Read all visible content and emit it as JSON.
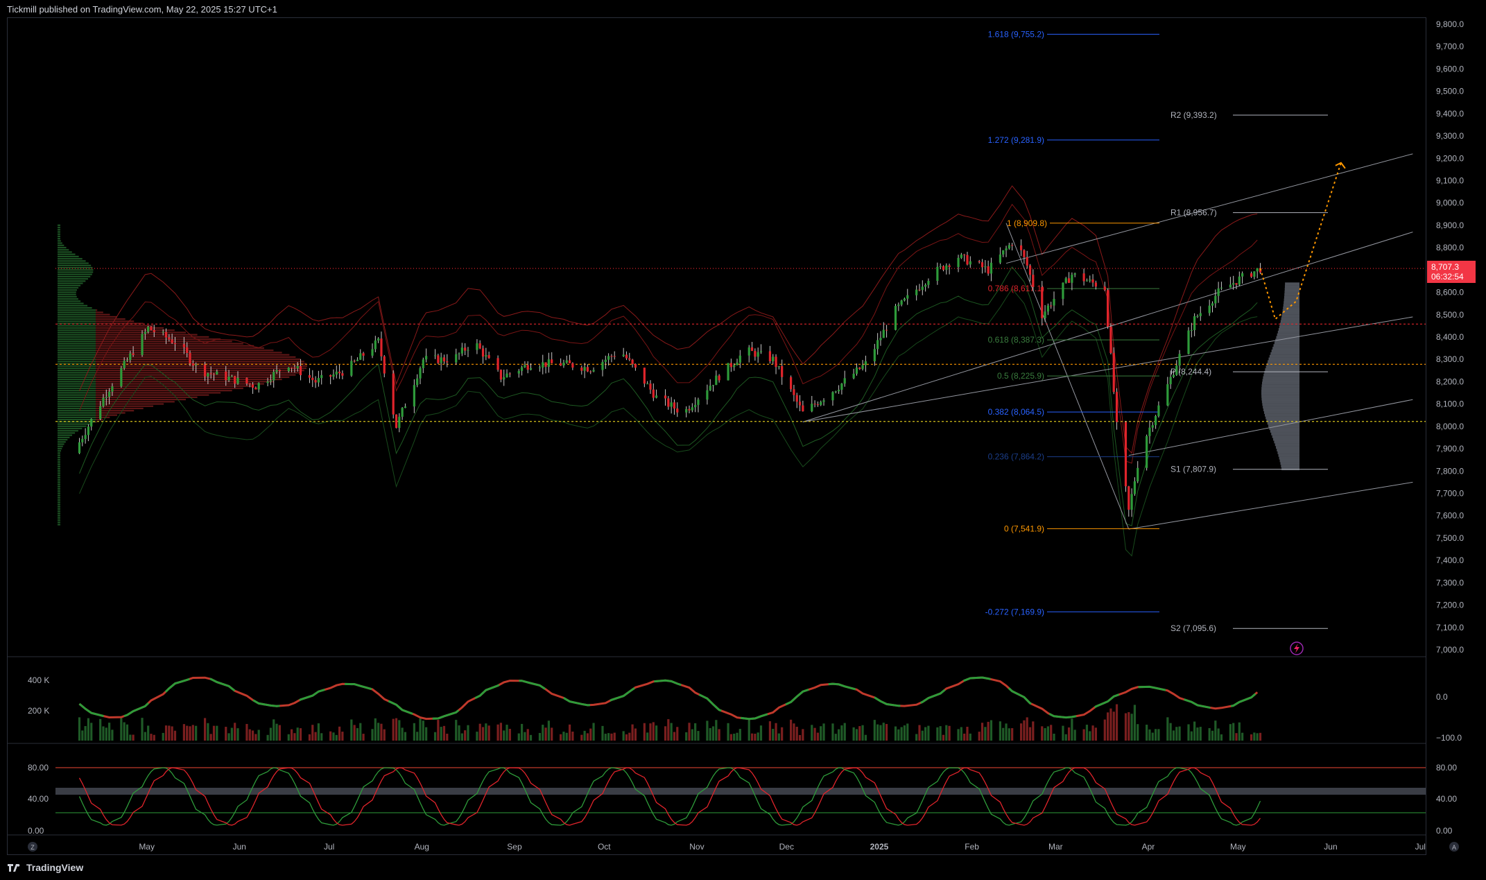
{
  "header": {
    "published_line": "Tickmill published on TradingView.com, May 22, 2025 15:27 UTC+1"
  },
  "footer": {
    "brand": "TradingView"
  },
  "chart_data": {
    "type": "candlestick",
    "price_axis": {
      "min": 7000,
      "max": 9800,
      "ticks": [
        "9,800.0",
        "9,700.0",
        "9,600.0",
        "9,500.0",
        "9,400.0",
        "9,300.0",
        "9,200.0",
        "9,100.0",
        "9,000.0",
        "8,900.0",
        "8,800.0",
        "8,700.0",
        "8,600.0",
        "8,500.0",
        "8,400.0",
        "8,300.0",
        "8,200.0",
        "8,100.0",
        "8,000.0",
        "7,900.0",
        "7,800.0",
        "7,700.0",
        "7,600.0",
        "7,500.0",
        "7,400.0",
        "7,300.0",
        "7,200.0",
        "7,100.0",
        "7,000.0"
      ]
    },
    "time_axis": {
      "labels": [
        "May",
        "Jun",
        "Jul",
        "Aug",
        "Sep",
        "Oct",
        "Nov",
        "Dec",
        "2025",
        "Feb",
        "Mar",
        "Apr",
        "May",
        "Jun",
        "Jul"
      ]
    },
    "last_price": {
      "value": "8,707.3",
      "countdown": "06:32:54"
    },
    "price_path": [
      {
        "t": "2024-04-20",
        "p": 7880
      },
      {
        "t": "2024-05-01",
        "p": 8150
      },
      {
        "t": "2024-05-15",
        "p": 8440
      },
      {
        "t": "2024-05-25",
        "p": 8370
      },
      {
        "t": "2024-06-01",
        "p": 8250
      },
      {
        "t": "2024-06-10",
        "p": 8220
      },
      {
        "t": "2024-06-20",
        "p": 8180
      },
      {
        "t": "2024-07-01",
        "p": 8280
      },
      {
        "t": "2024-07-10",
        "p": 8200
      },
      {
        "t": "2024-07-20",
        "p": 8250
      },
      {
        "t": "2024-07-31",
        "p": 8380
      },
      {
        "t": "2024-08-06",
        "p": 8000
      },
      {
        "t": "2024-08-15",
        "p": 8300
      },
      {
        "t": "2024-08-25",
        "p": 8300
      },
      {
        "t": "2024-09-01",
        "p": 8380
      },
      {
        "t": "2024-09-10",
        "p": 8220
      },
      {
        "t": "2024-09-20",
        "p": 8280
      },
      {
        "t": "2024-10-01",
        "p": 8280
      },
      {
        "t": "2024-10-10",
        "p": 8260
      },
      {
        "t": "2024-10-20",
        "p": 8340
      },
      {
        "t": "2024-11-01",
        "p": 8130
      },
      {
        "t": "2024-11-10",
        "p": 8060
      },
      {
        "t": "2024-11-20",
        "p": 8200
      },
      {
        "t": "2024-12-01",
        "p": 8340
      },
      {
        "t": "2024-12-10",
        "p": 8300
      },
      {
        "t": "2024-12-20",
        "p": 8060
      },
      {
        "t": "2025-01-01",
        "p": 8180
      },
      {
        "t": "2025-01-10",
        "p": 8280
      },
      {
        "t": "2025-01-20",
        "p": 8520
      },
      {
        "t": "2025-02-01",
        "p": 8680
      },
      {
        "t": "2025-02-10",
        "p": 8760
      },
      {
        "t": "2025-02-20",
        "p": 8700
      },
      {
        "t": "2025-03-01",
        "p": 8840
      },
      {
        "t": "2025-03-05",
        "p": 8720
      },
      {
        "t": "2025-03-10",
        "p": 8500
      },
      {
        "t": "2025-03-20",
        "p": 8680
      },
      {
        "t": "2025-03-31",
        "p": 8620
      },
      {
        "t": "2025-04-04",
        "p": 8000
      },
      {
        "t": "2025-04-08",
        "p": 7620
      },
      {
        "t": "2025-04-12",
        "p": 7900
      },
      {
        "t": "2025-04-20",
        "p": 8150
      },
      {
        "t": "2025-04-30",
        "p": 8480
      },
      {
        "t": "2025-05-08",
        "p": 8600
      },
      {
        "t": "2025-05-15",
        "p": 8660
      },
      {
        "t": "2025-05-22",
        "p": 8707
      }
    ],
    "projection_path": [
      {
        "t": "2025-05-22",
        "p": 8707
      },
      {
        "t": "2025-05-27",
        "p": 8480
      },
      {
        "t": "2025-06-03",
        "p": 8560
      },
      {
        "t": "2025-06-10",
        "p": 8850
      },
      {
        "t": "2025-06-18",
        "p": 9180
      }
    ],
    "fibonacci": [
      {
        "label": "1.618 (9,755.2)",
        "value": 9755.2
      },
      {
        "label": "1.272 (9,281.9)",
        "value": 9281.9
      },
      {
        "label": "1 (8,909.8)",
        "value": 8909.8
      },
      {
        "label": "0.786 (8,617.1)",
        "value": 8617.1
      },
      {
        "label": "0.618 (8,387.3)",
        "value": 8387.3
      },
      {
        "label": "0.5 (8,225.9)",
        "value": 8225.9
      },
      {
        "label": "0.382 (8,064.5)",
        "value": 8064.5
      },
      {
        "label": "0.236 (7,864.2)",
        "value": 7864.2
      },
      {
        "label": "0 (7,541.9)",
        "value": 7541.9
      },
      {
        "label": "-0.272 (7,169.9)",
        "value": 7169.9
      }
    ],
    "pivots": [
      {
        "label": "R2 (9,393.2)",
        "value": 9393.2
      },
      {
        "label": "R1 (8,956.7)",
        "value": 8956.7
      },
      {
        "label": "P (8,244.4)",
        "value": 8244.4
      },
      {
        "label": "S1 (7,807.9)",
        "value": 7807.9
      },
      {
        "label": "S2 (7,095.6)",
        "value": 7095.6
      }
    ],
    "horizontal_levels": [
      {
        "value": 8707,
        "style": "red-dotted"
      },
      {
        "value": 8458,
        "style": "red-dashed"
      },
      {
        "value": 8278,
        "style": "orange-dashed"
      },
      {
        "value": 8022,
        "style": "yellow-dashed"
      }
    ],
    "volume_panel": {
      "ticks": [
        "400 K",
        "200 K"
      ],
      "right_ticks": [
        "0.0",
        "−100.0"
      ]
    },
    "stochastic_panel": {
      "ticks": [
        "80.00",
        "40.00",
        "0.00"
      ],
      "right_ticks": [
        "80.00",
        "40.00",
        "0.00"
      ]
    },
    "colors": {
      "up": "#26a69a",
      "up_candle": "#2e9b3a",
      "down": "#e0242b",
      "fib": "#2962ff",
      "fib_key": "#ff9800",
      "pivot": "#b2b5be",
      "projection": "#ff9800",
      "price_tag": "#f23645"
    }
  }
}
